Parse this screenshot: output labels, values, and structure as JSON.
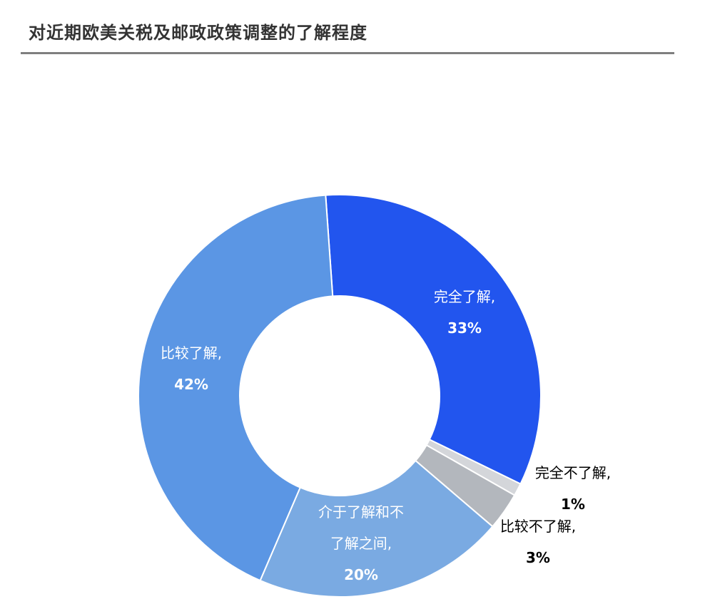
{
  "chart_data": {
    "type": "pie",
    "variant": "donut",
    "title": "对近期欧美关税及邮政政策调整的了解程度",
    "slices": [
      {
        "category": "完全了解",
        "value": 33,
        "value_label": "33%",
        "color": "#2255ee"
      },
      {
        "category": "完全不了解",
        "value": 1,
        "value_label": "1%",
        "color": "#d4d6da"
      },
      {
        "category": "比较不了解",
        "value": 3,
        "value_label": "3%",
        "color": "#b3b7bd"
      },
      {
        "category": "介于了解和不了解之间",
        "value": 20,
        "value_label": "20%",
        "color": "#7aaae2"
      },
      {
        "category": "比较了解",
        "value": 42,
        "value_label": "42%",
        "color": "#5b96e4"
      }
    ]
  }
}
